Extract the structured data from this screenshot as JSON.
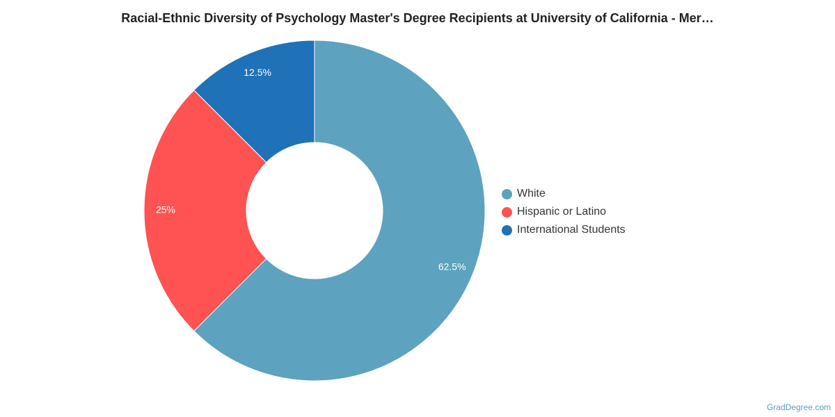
{
  "chart_data": {
    "type": "pie",
    "variant": "donut",
    "title": "Racial-Ethnic Diversity of Psychology Master's Degree Recipients at University of California - Mer…",
    "legend_placement": "right",
    "slices": [
      {
        "label": "White",
        "value": 62.5,
        "value_label": "62.5%",
        "color": "#5da2be"
      },
      {
        "label": "Hispanic or Latino",
        "value": 25,
        "value_label": "25%",
        "color": "#ff5252"
      },
      {
        "label": "International Students",
        "value": 12.5,
        "value_label": "12.5%",
        "color": "#1f72b8"
      }
    ]
  },
  "credit": "GradDegree.com"
}
